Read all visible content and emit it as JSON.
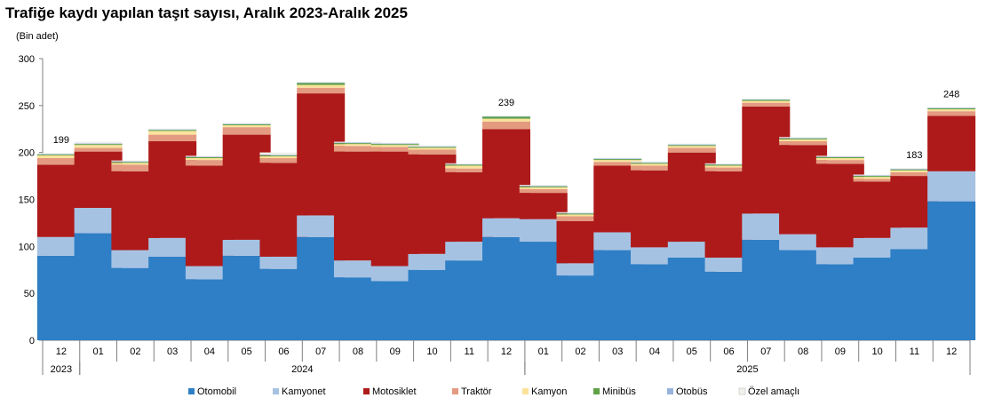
{
  "title": "Trafiğe kaydı yapılan taşıt sayısı, Aralık 2023-Aralık 2025",
  "chart_data": {
    "type": "bar",
    "stacked": true,
    "unit_label": "(Bin adet)",
    "ylim": [
      0,
      300
    ],
    "yticks": [
      0,
      50,
      100,
      150,
      200,
      250,
      300
    ],
    "grid": false,
    "legend_position": "bottom",
    "categories": [
      "12",
      "01",
      "02",
      "03",
      "04",
      "05",
      "06",
      "07",
      "08",
      "09",
      "10",
      "11",
      "12",
      "01",
      "02",
      "03",
      "04",
      "05",
      "06",
      "07",
      "08",
      "09",
      "10",
      "11",
      "12"
    ],
    "year_groups": [
      {
        "label": "2023",
        "start": 0,
        "end": 0
      },
      {
        "label": "2024",
        "start": 1,
        "end": 12
      },
      {
        "label": "2025",
        "start": 13,
        "end": 24
      }
    ],
    "totals_labels": [
      {
        "index": 0,
        "text": "199"
      },
      {
        "index": 12,
        "text": "239"
      },
      {
        "index": 23,
        "text": "183"
      },
      {
        "index": 24,
        "text": "248"
      }
    ],
    "series": [
      {
        "name": "Otomobil",
        "color": "#2e7fc5",
        "values": [
          90,
          114,
          77,
          89,
          65,
          90,
          76,
          110,
          67,
          63,
          75,
          85,
          110,
          105,
          69,
          96,
          81,
          88,
          73,
          107,
          96,
          81,
          88,
          97,
          148
        ]
      },
      {
        "name": "Kamyonet",
        "color": "#a6c2e3",
        "values": [
          20,
          27,
          19,
          20,
          14,
          17,
          13,
          23,
          18,
          16,
          17,
          20,
          20,
          24,
          13,
          19,
          18,
          17,
          15,
          28,
          17,
          18,
          21,
          23,
          32
        ]
      },
      {
        "name": "Motosiklet",
        "color": "#ae1a1a",
        "values": [
          77,
          60,
          84,
          103,
          107,
          112,
          100,
          130,
          116,
          122,
          106,
          74,
          95,
          28,
          45,
          71,
          82,
          95,
          92,
          114,
          95,
          89,
          60,
          55,
          59
        ]
      },
      {
        "name": "Traktör",
        "color": "#e39a80",
        "values": [
          7,
          4,
          7,
          7,
          6,
          8,
          5,
          6,
          6,
          5,
          5,
          4,
          8,
          4,
          5,
          4,
          5,
          5,
          4,
          4,
          4,
          4,
          3,
          4,
          5
        ]
      },
      {
        "name": "Kamyon",
        "color": "#fbe29b",
        "values": [
          3,
          3,
          2,
          4,
          2,
          2,
          2,
          3,
          2,
          2,
          2,
          3,
          3,
          2,
          2,
          2,
          2,
          2,
          2,
          2,
          2,
          2,
          2,
          2,
          2
        ]
      },
      {
        "name": "Minibüs",
        "color": "#5fa246",
        "values": [
          1,
          1,
          1,
          1,
          1,
          1,
          1,
          2,
          1,
          1,
          1,
          1,
          2,
          1,
          1,
          1,
          1,
          1,
          1,
          1,
          1,
          1,
          1,
          1,
          1
        ]
      },
      {
        "name": "Otobüs",
        "color": "#97b3dc",
        "values": [
          0.6,
          0.6,
          0.6,
          0.6,
          0.6,
          0.6,
          0.6,
          0.6,
          0.6,
          0.6,
          0.6,
          0.6,
          0.6,
          0.6,
          0.6,
          0.6,
          0.6,
          0.6,
          0.6,
          0.6,
          0.6,
          0.6,
          0.6,
          0.6,
          0.6
        ]
      },
      {
        "name": "Özel amaçlı",
        "color": "#f1f1ec",
        "values": [
          0.9,
          2,
          0.9,
          0.9,
          0.9,
          0.9,
          2.5,
          0.9,
          0.9,
          0.9,
          0.9,
          0.9,
          0.9,
          0.9,
          0.9,
          0.9,
          0.9,
          0.9,
          0.9,
          0.9,
          0.9,
          0.9,
          0.9,
          0.9,
          0.9
        ]
      }
    ]
  }
}
